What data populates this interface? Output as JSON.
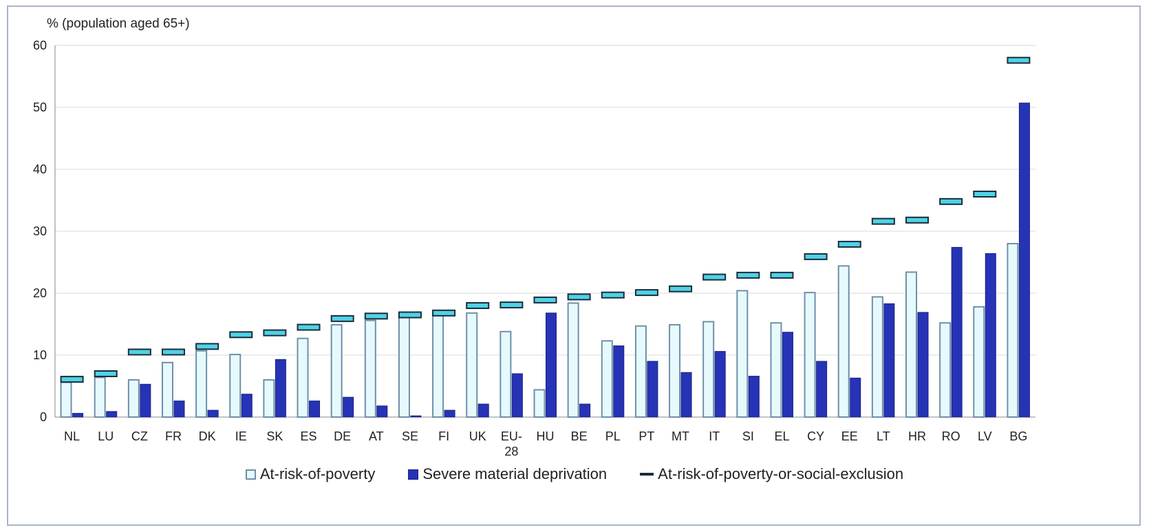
{
  "chart_data": {
    "type": "bar",
    "ylabel": "% (population aged 65+)",
    "ylim": [
      0,
      60
    ],
    "yticks": [
      0,
      10,
      20,
      30,
      40,
      50,
      60
    ],
    "categories": [
      "NL",
      "LU",
      "CZ",
      "FR",
      "DK",
      "IE",
      "SK",
      "ES",
      "DE",
      "AT",
      "SE",
      "FI",
      "UK",
      "EU-28",
      "HU",
      "BE",
      "PL",
      "PT",
      "MT",
      "IT",
      "SI",
      "EL",
      "CY",
      "EE",
      "LT",
      "HR",
      "RO",
      "LV",
      "BG"
    ],
    "series": [
      {
        "name": "At-risk-of-poverty",
        "kind": "bar",
        "color": "#e6fafd",
        "values": [
          5.6,
          6.4,
          6.0,
          8.8,
          10.7,
          10.1,
          6.0,
          12.7,
          14.9,
          15.6,
          16.5,
          16.5,
          16.8,
          13.8,
          4.4,
          18.4,
          12.3,
          14.7,
          14.9,
          15.4,
          20.4,
          15.2,
          20.1,
          24.4,
          19.4,
          23.4,
          15.2,
          17.8,
          28.0
        ]
      },
      {
        "name": "Severe material deprivation",
        "kind": "bar",
        "color": "#2633b6",
        "values": [
          0.6,
          0.9,
          5.3,
          2.6,
          1.1,
          3.7,
          9.3,
          2.6,
          3.2,
          1.8,
          0.2,
          1.1,
          2.1,
          7.0,
          16.8,
          2.1,
          11.5,
          9.0,
          7.2,
          10.6,
          6.6,
          13.7,
          9.0,
          6.3,
          18.3,
          16.9,
          27.4,
          26.4,
          50.7
        ]
      },
      {
        "name": "At-risk-of-poverty-or-social-exclusion",
        "kind": "marker",
        "color": "#4fd2e5",
        "values": [
          6.1,
          7.0,
          10.5,
          10.5,
          11.4,
          13.3,
          13.6,
          14.5,
          15.9,
          16.3,
          16.5,
          16.8,
          18.0,
          18.1,
          18.9,
          19.4,
          19.7,
          20.1,
          20.7,
          22.6,
          22.9,
          22.9,
          25.9,
          27.9,
          31.6,
          31.8,
          34.8,
          36.0,
          57.6
        ]
      }
    ],
    "legend_position": "bottom"
  }
}
